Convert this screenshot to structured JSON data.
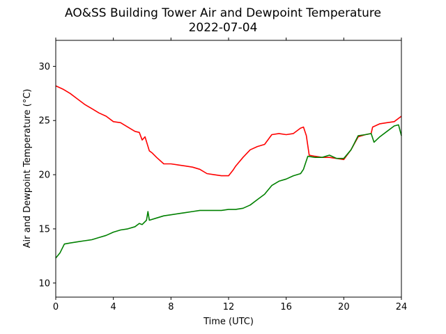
{
  "chart_data": {
    "type": "line",
    "title": "AO&SS Building Tower Air and Dewpoint Temperature",
    "subtitle": "2022-07-04",
    "xlabel": "Time (UTC)",
    "ylabel": "Air and Dewpoint Temperature (°C)",
    "xlim": [
      0,
      24
    ],
    "ylim": [
      8.7,
      32.4
    ],
    "xticks": [
      0,
      4,
      8,
      12,
      16,
      20,
      24
    ],
    "yticks": [
      10,
      15,
      20,
      25,
      30
    ],
    "grid": false,
    "legend": "none",
    "series": [
      {
        "color": "#ff0000",
        "x": [
          0,
          0.5,
          1,
          1.5,
          2,
          2.5,
          3,
          3.5,
          4,
          4.5,
          5,
          5.5,
          5.8,
          6.0,
          6.2,
          6.5,
          6.7,
          7,
          7.5,
          8,
          8.5,
          9,
          9.5,
          10,
          10.5,
          11,
          11.5,
          12,
          12.3,
          12.5,
          13,
          13.5,
          14,
          14.5,
          15,
          15.5,
          16,
          16.5,
          17,
          17.2,
          17.4,
          17.6,
          18,
          18.5,
          19,
          19.5,
          20,
          20.5,
          21,
          21.5,
          21.9,
          22,
          22.5,
          23,
          23.5,
          24
        ],
        "y": [
          28.2,
          27.9,
          27.5,
          27.0,
          26.5,
          26.1,
          25.7,
          25.4,
          24.9,
          24.8,
          24.4,
          24.0,
          23.9,
          23.2,
          23.5,
          22.2,
          22.0,
          21.6,
          21.0,
          21.0,
          20.9,
          20.8,
          20.7,
          20.5,
          20.1,
          20.0,
          19.9,
          19.9,
          20.4,
          20.8,
          21.6,
          22.3,
          22.6,
          22.8,
          23.7,
          23.8,
          23.7,
          23.8,
          24.3,
          24.4,
          23.6,
          21.8,
          21.7,
          21.6,
          21.6,
          21.5,
          21.4,
          22.3,
          23.5,
          23.7,
          23.8,
          24.4,
          24.7,
          24.8,
          24.9,
          25.4
        ]
      },
      {
        "color": "#008000",
        "x": [
          0,
          0.3,
          0.6,
          1,
          1.5,
          2,
          2.5,
          3,
          3.5,
          4,
          4.5,
          5,
          5.5,
          5.8,
          6.0,
          6.3,
          6.4,
          6.5,
          7,
          7.5,
          8,
          8.5,
          9,
          9.5,
          10,
          10.5,
          11,
          11.5,
          12,
          12.5,
          13,
          13.5,
          14,
          14.5,
          15,
          15.5,
          16,
          16.5,
          17,
          17.2,
          17.5,
          18,
          18.5,
          19,
          19.5,
          20,
          20.5,
          21,
          21.5,
          21.9,
          22.1,
          22.5,
          23,
          23.5,
          23.8,
          24
        ],
        "y": [
          12.3,
          12.8,
          13.6,
          13.7,
          13.8,
          13.9,
          14.0,
          14.2,
          14.4,
          14.7,
          14.9,
          15.0,
          15.2,
          15.5,
          15.4,
          15.8,
          16.6,
          15.8,
          16.0,
          16.2,
          16.3,
          16.4,
          16.5,
          16.6,
          16.7,
          16.7,
          16.7,
          16.7,
          16.8,
          16.8,
          16.9,
          17.2,
          17.7,
          18.2,
          19.0,
          19.4,
          19.6,
          19.9,
          20.1,
          20.5,
          21.7,
          21.6,
          21.6,
          21.8,
          21.5,
          21.5,
          22.3,
          23.6,
          23.7,
          23.8,
          23.0,
          23.5,
          24.0,
          24.5,
          24.6,
          23.6
        ]
      }
    ]
  }
}
